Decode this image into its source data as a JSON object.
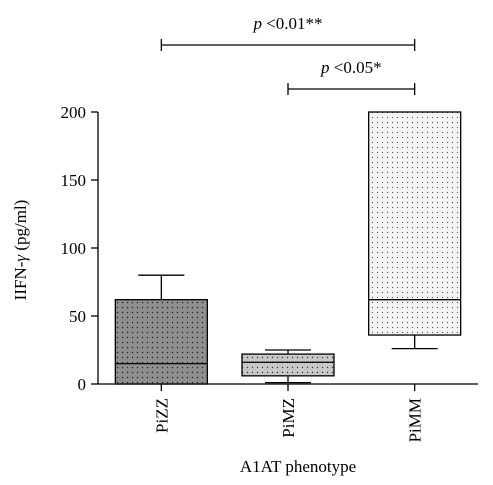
{
  "chart_data": {
    "type": "box",
    "xlabel": "A1AT phenotype",
    "ylabel": "IIFN-γ (pg/ml)",
    "ylabel_parts": {
      "prefix": "IIFN-",
      "greek": "γ",
      "suffix": " (pg/ml)"
    },
    "ylim": [
      0,
      200
    ],
    "yticks": [
      0,
      50,
      100,
      150,
      200
    ],
    "categories": [
      "PiZZ",
      "PiMZ",
      "PiMM"
    ],
    "boxes": [
      {
        "name": "PiZZ",
        "min": 0,
        "q1": 0,
        "median": 15,
        "q3": 62,
        "max": 80,
        "fill": "#8f8f8f"
      },
      {
        "name": "PiMZ",
        "min": 1,
        "q1": 6,
        "median": 16,
        "q3": 22,
        "max": 25,
        "fill": "#c8c8c8"
      },
      {
        "name": "PiMM",
        "min": 26,
        "q1": 36,
        "median": 62,
        "q3": 200,
        "max": 200,
        "fill": "#f2f2f2"
      }
    ],
    "annotations": [
      {
        "from": "PiZZ",
        "to": "PiMM",
        "p": "p",
        "text": " <0.01**"
      },
      {
        "from": "PiMZ",
        "to": "PiMM",
        "p": "p",
        "text": " <0.05*"
      }
    ]
  }
}
